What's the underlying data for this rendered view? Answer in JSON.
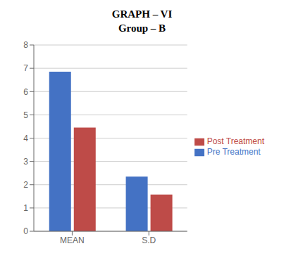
{
  "chart_data": {
    "type": "bar",
    "title": "GRAPH – VI",
    "subtitle": "Group – B",
    "categories": [
      "MEAN",
      "S.D"
    ],
    "series": [
      {
        "name": "Pre Treatment",
        "color": "#4472C4",
        "values": [
          6.85,
          2.35
        ]
      },
      {
        "name": "Post Treatment",
        "color": "#BE4B48",
        "values": [
          4.45,
          1.58
        ]
      }
    ],
    "ylim": [
      0,
      8
    ],
    "yticks": [
      0,
      1,
      2,
      3,
      4,
      5,
      6,
      7,
      8
    ],
    "grid": true,
    "legend": "right"
  }
}
